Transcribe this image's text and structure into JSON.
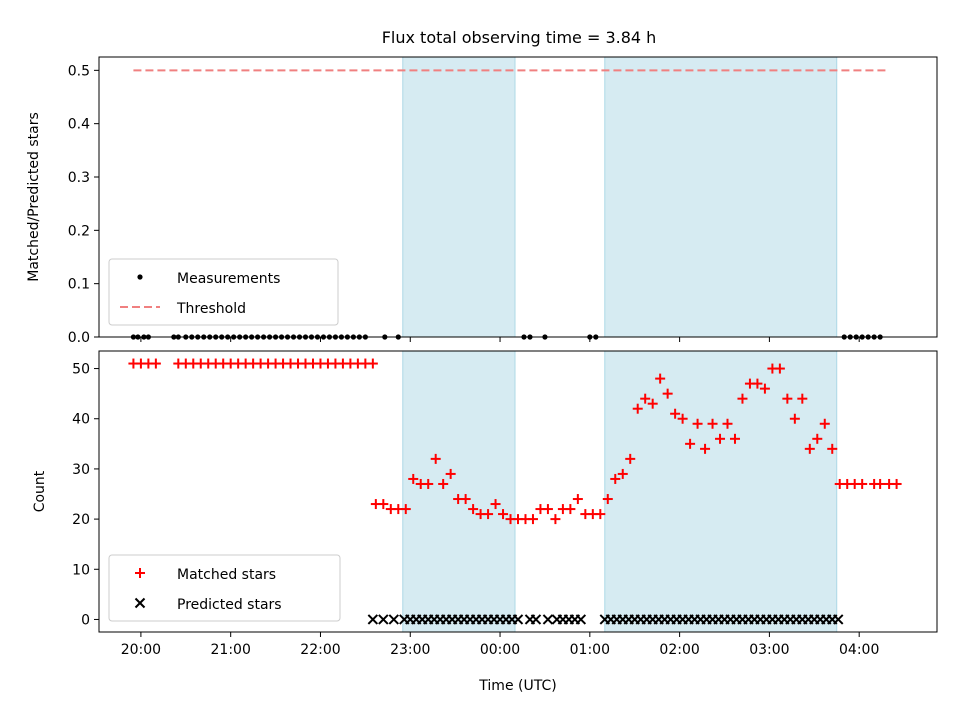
{
  "figure": {
    "title": "Flux total observing time = 3.84 h"
  },
  "time_axis": {
    "label": "Time (UTC)",
    "ticks": [
      "20:00",
      "21:00",
      "22:00",
      "23:00",
      "00:00",
      "01:00",
      "02:00",
      "03:00",
      "04:00"
    ]
  },
  "chart_data": [
    {
      "type": "scatter",
      "ylabel": "Matched/Predicted stars",
      "xlim": [
        "19:32",
        "04:52"
      ],
      "ylim": [
        0,
        0.525
      ],
      "yticks": [
        "0.0",
        "0.1",
        "0.2",
        "0.3",
        "0.4",
        "0.5"
      ],
      "shaded_intervals": [
        [
          "22:55",
          "00:10"
        ],
        [
          "01:10",
          "03:45"
        ]
      ],
      "threshold": {
        "name": "Threshold",
        "value": 0.5,
        "x_range": [
          "19:55",
          "04:20"
        ],
        "color": "#f08080",
        "style": "dashed"
      },
      "legend": {
        "position": "lower-left",
        "entries": [
          "Measurements",
          "Threshold"
        ]
      },
      "series": [
        {
          "name": "Measurements",
          "marker": "dot",
          "color": "#000000",
          "x": [
            "19:55",
            "19:58",
            "20:02",
            "20:05",
            "20:22",
            "20:25",
            "20:30",
            "20:34",
            "20:38",
            "20:42",
            "20:46",
            "20:50",
            "20:54",
            "20:58",
            "21:02",
            "21:06",
            "21:10",
            "21:14",
            "21:18",
            "21:22",
            "21:26",
            "21:30",
            "21:34",
            "21:38",
            "21:42",
            "21:46",
            "21:50",
            "21:54",
            "21:58",
            "22:02",
            "22:06",
            "22:10",
            "22:14",
            "22:18",
            "22:22",
            "22:26",
            "22:30",
            "22:43",
            "22:52",
            "00:16",
            "00:20",
            "00:30",
            "01:00",
            "01:04",
            "03:50",
            "03:54",
            "03:58",
            "04:02",
            "04:06",
            "04:10",
            "04:14"
          ],
          "y": [
            0,
            0,
            0,
            0,
            0,
            0,
            0,
            0,
            0,
            0,
            0,
            0,
            0,
            0,
            0,
            0,
            0,
            0,
            0,
            0,
            0,
            0,
            0,
            0,
            0,
            0,
            0,
            0,
            0,
            0,
            0,
            0,
            0,
            0,
            0,
            0,
            0,
            0,
            0,
            0,
            0,
            0,
            0,
            0,
            0,
            0,
            0,
            0,
            0,
            0,
            0
          ]
        }
      ]
    },
    {
      "type": "scatter",
      "ylabel": "Count",
      "xlabel": "Time (UTC)",
      "xlim": [
        "19:32",
        "04:52"
      ],
      "ylim": [
        -2.5,
        53.5
      ],
      "yticks": [
        "0",
        "10",
        "20",
        "30",
        "40",
        "50"
      ],
      "shaded_intervals": [
        [
          "22:55",
          "00:10"
        ],
        [
          "01:10",
          "03:45"
        ]
      ],
      "legend": {
        "position": "lower-left",
        "entries": [
          "Matched stars",
          "Predicted stars"
        ]
      },
      "series": [
        {
          "name": "Matched stars",
          "marker": "plus",
          "color": "#ff0000",
          "x": [
            "19:55",
            "20:00",
            "20:05",
            "20:10",
            "20:25",
            "20:30",
            "20:35",
            "20:40",
            "20:45",
            "20:50",
            "20:55",
            "21:00",
            "21:05",
            "21:10",
            "21:15",
            "21:20",
            "21:25",
            "21:30",
            "21:35",
            "21:40",
            "21:45",
            "21:50",
            "21:55",
            "22:00",
            "22:05",
            "22:10",
            "22:15",
            "22:20",
            "22:25",
            "22:30",
            "22:35",
            "22:37",
            "22:42",
            "22:47",
            "22:52",
            "22:57",
            "23:02",
            "23:07",
            "23:12",
            "23:17",
            "23:22",
            "23:27",
            "23:32",
            "23:37",
            "23:42",
            "23:47",
            "23:52",
            "23:57",
            "00:02",
            "00:07",
            "00:12",
            "00:17",
            "00:22",
            "00:27",
            "00:32",
            "00:37",
            "00:42",
            "00:47",
            "00:52",
            "00:57",
            "01:02",
            "01:07",
            "01:12",
            "01:17",
            "01:22",
            "01:27",
            "01:32",
            "01:37",
            "01:42",
            "01:47",
            "01:52",
            "01:57",
            "02:02",
            "02:07",
            "02:12",
            "02:17",
            "02:22",
            "02:27",
            "02:32",
            "02:37",
            "02:42",
            "02:47",
            "02:52",
            "02:57",
            "03:02",
            "03:07",
            "03:12",
            "03:17",
            "03:22",
            "03:27",
            "03:32",
            "03:37",
            "03:42",
            "03:47",
            "03:52",
            "03:57",
            "04:02",
            "04:10",
            "04:14",
            "04:20",
            "04:25"
          ],
          "y": [
            51,
            51,
            51,
            51,
            51,
            51,
            51,
            51,
            51,
            51,
            51,
            51,
            51,
            51,
            51,
            51,
            51,
            51,
            51,
            51,
            51,
            51,
            51,
            51,
            51,
            51,
            51,
            51,
            51,
            51,
            51,
            23,
            23,
            22,
            22,
            22,
            28,
            27,
            27,
            32,
            27,
            29,
            24,
            24,
            22,
            21,
            21,
            23,
            21,
            20,
            20,
            20,
            20,
            22,
            22,
            20,
            22,
            22,
            24,
            21,
            21,
            21,
            24,
            28,
            29,
            32,
            42,
            44,
            43,
            48,
            45,
            41,
            40,
            35,
            39,
            34,
            39,
            36,
            39,
            36,
            44,
            47,
            47,
            46,
            50,
            50,
            44,
            40,
            44,
            34,
            36,
            39,
            34,
            27,
            27,
            27,
            27,
            27,
            27,
            27,
            27
          ]
        },
        {
          "name": "Predicted stars",
          "marker": "x",
          "color": "#000000",
          "x": [
            "22:35",
            "22:42",
            "22:49",
            "22:56",
            "23:00",
            "23:04",
            "23:08",
            "23:12",
            "23:16",
            "23:20",
            "23:24",
            "23:28",
            "23:32",
            "23:36",
            "23:40",
            "23:44",
            "23:48",
            "23:52",
            "23:56",
            "00:00",
            "00:04",
            "00:08",
            "00:12",
            "00:20",
            "00:24",
            "00:32",
            "00:38",
            "00:42",
            "00:46",
            "00:50",
            "00:54",
            "01:10",
            "01:14",
            "01:18",
            "01:22",
            "01:26",
            "01:30",
            "01:34",
            "01:38",
            "01:42",
            "01:46",
            "01:50",
            "01:54",
            "01:58",
            "02:02",
            "02:06",
            "02:10",
            "02:14",
            "02:18",
            "02:22",
            "02:26",
            "02:30",
            "02:34",
            "02:38",
            "02:42",
            "02:46",
            "02:50",
            "02:54",
            "02:58",
            "03:02",
            "03:06",
            "03:10",
            "03:14",
            "03:18",
            "03:22",
            "03:26",
            "03:30",
            "03:34",
            "03:38",
            "03:42",
            "03:46"
          ],
          "y": [
            0,
            0,
            0,
            0,
            0,
            0,
            0,
            0,
            0,
            0,
            0,
            0,
            0,
            0,
            0,
            0,
            0,
            0,
            0,
            0,
            0,
            0,
            0,
            0,
            0,
            0,
            0,
            0,
            0,
            0,
            0,
            0,
            0,
            0,
            0,
            0,
            0,
            0,
            0,
            0,
            0,
            0,
            0,
            0,
            0,
            0,
            0,
            0,
            0,
            0,
            0,
            0,
            0,
            0,
            0,
            0,
            0,
            0,
            0,
            0,
            0,
            0,
            0,
            0,
            0,
            0,
            0,
            0,
            0,
            0,
            0
          ]
        }
      ]
    }
  ]
}
